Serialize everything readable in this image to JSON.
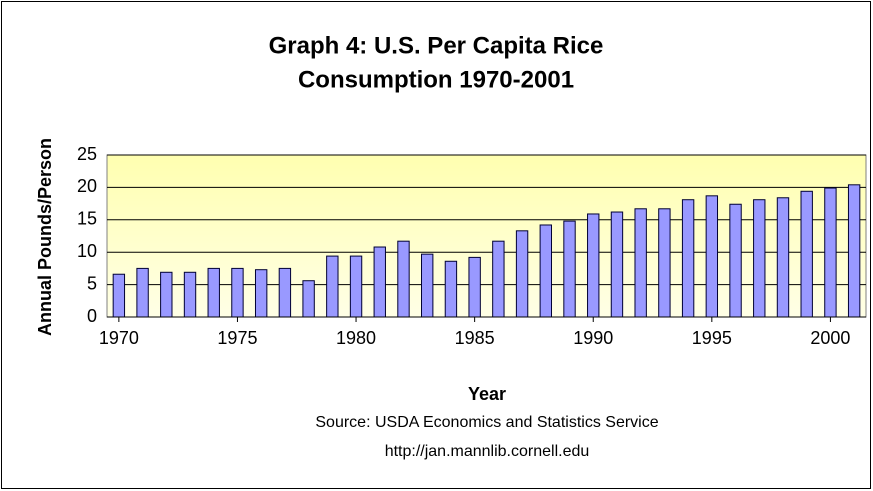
{
  "chart_data": {
    "type": "bar",
    "title": [
      "Graph 4: U.S. Per Capita Rice",
      "Consumption 1970-2001"
    ],
    "x_label": "Year",
    "y_label": "Annual Pounds/Person",
    "notes": [
      "Source: USDA Economics and Statistics Service",
      "http://jan.mannlib.cornell.edu"
    ],
    "x": [
      1970,
      1971,
      1972,
      1973,
      1974,
      1975,
      1976,
      1977,
      1978,
      1979,
      1980,
      1981,
      1982,
      1983,
      1984,
      1985,
      1986,
      1987,
      1988,
      1989,
      1990,
      1991,
      1992,
      1993,
      1994,
      1995,
      1996,
      1997,
      1998,
      1999,
      2000,
      2001
    ],
    "values": [
      6.6,
      7.5,
      6.9,
      6.9,
      7.5,
      7.5,
      7.3,
      7.5,
      5.6,
      9.4,
      9.4,
      10.8,
      11.7,
      9.7,
      8.6,
      9.2,
      11.7,
      13.3,
      14.2,
      14.8,
      15.9,
      16.2,
      16.7,
      16.7,
      18.1,
      18.7,
      17.4,
      18.1,
      18.4,
      19.4,
      19.9,
      20.4
    ],
    "color": "#9999ff",
    "xlim": [
      1969.5,
      2001.5
    ],
    "xticks": [
      1970,
      1975,
      1980,
      1985,
      1990,
      1995,
      2000
    ],
    "ylim": [
      0,
      25
    ],
    "yticks": [
      0,
      5,
      10,
      15,
      20,
      25
    ],
    "grid": true
  }
}
